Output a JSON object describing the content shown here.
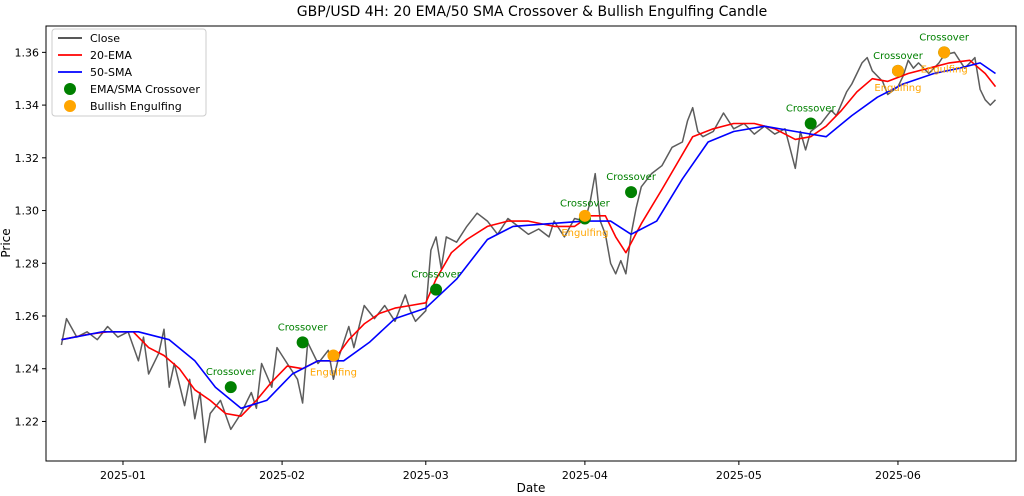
{
  "chart_data": {
    "type": "line",
    "title": "GBP/USD 4H: 20 EMA/50 SMA Crossover & Bullish Engulfing Candle",
    "xlabel": "Date",
    "ylabel": "Price",
    "xlim": [
      "2024-12-17",
      "2025-06-24"
    ],
    "ylim": [
      1.205,
      1.37
    ],
    "x_ticks": [
      "2025-01-01",
      "2025-02-01",
      "2025-03-01",
      "2025-04-01",
      "2025-05-01",
      "2025-06-01"
    ],
    "x_tick_labels": [
      "2025-01",
      "2025-02",
      "2025-03",
      "2025-04",
      "2025-05",
      "2025-06"
    ],
    "y_ticks": [
      1.22,
      1.24,
      1.26,
      1.28,
      1.3,
      1.32,
      1.34,
      1.36
    ],
    "y_tick_labels": [
      "1.22",
      "1.24",
      "1.26",
      "1.28",
      "1.30",
      "1.32",
      "1.34",
      "1.36"
    ],
    "legend_position": "top-left",
    "series": [
      {
        "name": "Close",
        "color": "#404040",
        "points": [
          [
            "2024-12-20",
            1.249
          ],
          [
            "2024-12-21",
            1.259
          ],
          [
            "2024-12-23",
            1.252
          ],
          [
            "2024-12-25",
            1.254
          ],
          [
            "2024-12-27",
            1.251
          ],
          [
            "2024-12-29",
            1.256
          ],
          [
            "2024-12-31",
            1.252
          ],
          [
            "2025-01-02",
            1.254
          ],
          [
            "2025-01-04",
            1.243
          ],
          [
            "2025-01-05",
            1.252
          ],
          [
            "2025-01-06",
            1.238
          ],
          [
            "2025-01-08",
            1.246
          ],
          [
            "2025-01-09",
            1.255
          ],
          [
            "2025-01-10",
            1.233
          ],
          [
            "2025-01-11",
            1.242
          ],
          [
            "2025-01-13",
            1.226
          ],
          [
            "2025-01-14",
            1.236
          ],
          [
            "2025-01-15",
            1.221
          ],
          [
            "2025-01-16",
            1.231
          ],
          [
            "2025-01-17",
            1.212
          ],
          [
            "2025-01-18",
            1.223
          ],
          [
            "2025-01-20",
            1.228
          ],
          [
            "2025-01-22",
            1.217
          ],
          [
            "2025-01-24",
            1.223
          ],
          [
            "2025-01-26",
            1.231
          ],
          [
            "2025-01-27",
            1.225
          ],
          [
            "2025-01-28",
            1.242
          ],
          [
            "2025-01-30",
            1.233
          ],
          [
            "2025-01-31",
            1.248
          ],
          [
            "2025-02-02",
            1.242
          ],
          [
            "2025-02-04",
            1.236
          ],
          [
            "2025-02-05",
            1.227
          ],
          [
            "2025-02-06",
            1.25
          ],
          [
            "2025-02-08",
            1.242
          ],
          [
            "2025-02-10",
            1.247
          ],
          [
            "2025-02-11",
            1.236
          ],
          [
            "2025-02-12",
            1.244
          ],
          [
            "2025-02-14",
            1.256
          ],
          [
            "2025-02-15",
            1.248
          ],
          [
            "2025-02-17",
            1.264
          ],
          [
            "2025-02-19",
            1.259
          ],
          [
            "2025-02-21",
            1.264
          ],
          [
            "2025-02-23",
            1.258
          ],
          [
            "2025-02-25",
            1.268
          ],
          [
            "2025-02-26",
            1.262
          ],
          [
            "2025-02-27",
            1.258
          ],
          [
            "2025-03-01",
            1.262
          ],
          [
            "2025-03-02",
            1.285
          ],
          [
            "2025-03-03",
            1.29
          ],
          [
            "2025-03-04",
            1.278
          ],
          [
            "2025-03-05",
            1.29
          ],
          [
            "2025-03-07",
            1.288
          ],
          [
            "2025-03-09",
            1.294
          ],
          [
            "2025-03-11",
            1.299
          ],
          [
            "2025-03-13",
            1.296
          ],
          [
            "2025-03-15",
            1.291
          ],
          [
            "2025-03-17",
            1.297
          ],
          [
            "2025-03-19",
            1.294
          ],
          [
            "2025-03-21",
            1.291
          ],
          [
            "2025-03-23",
            1.293
          ],
          [
            "2025-03-25",
            1.29
          ],
          [
            "2025-03-26",
            1.296
          ],
          [
            "2025-03-28",
            1.29
          ],
          [
            "2025-03-30",
            1.297
          ],
          [
            "2025-04-01",
            1.296
          ],
          [
            "2025-04-02",
            1.303
          ],
          [
            "2025-04-03",
            1.314
          ],
          [
            "2025-04-04",
            1.296
          ],
          [
            "2025-04-05",
            1.291
          ],
          [
            "2025-04-06",
            1.28
          ],
          [
            "2025-04-07",
            1.276
          ],
          [
            "2025-04-08",
            1.281
          ],
          [
            "2025-04-09",
            1.276
          ],
          [
            "2025-04-10",
            1.291
          ],
          [
            "2025-04-11",
            1.301
          ],
          [
            "2025-04-12",
            1.309
          ],
          [
            "2025-04-14",
            1.314
          ],
          [
            "2025-04-16",
            1.317
          ],
          [
            "2025-04-18",
            1.324
          ],
          [
            "2025-04-20",
            1.326
          ],
          [
            "2025-04-21",
            1.334
          ],
          [
            "2025-04-22",
            1.339
          ],
          [
            "2025-04-23",
            1.33
          ],
          [
            "2025-04-24",
            1.328
          ],
          [
            "2025-04-26",
            1.33
          ],
          [
            "2025-04-28",
            1.337
          ],
          [
            "2025-04-30",
            1.331
          ],
          [
            "2025-05-02",
            1.333
          ],
          [
            "2025-05-04",
            1.329
          ],
          [
            "2025-05-06",
            1.332
          ],
          [
            "2025-05-08",
            1.329
          ],
          [
            "2025-05-10",
            1.331
          ],
          [
            "2025-05-12",
            1.316
          ],
          [
            "2025-05-13",
            1.33
          ],
          [
            "2025-05-14",
            1.323
          ],
          [
            "2025-05-15",
            1.33
          ],
          [
            "2025-05-17",
            1.333
          ],
          [
            "2025-05-19",
            1.338
          ],
          [
            "2025-05-20",
            1.336
          ],
          [
            "2025-05-22",
            1.345
          ],
          [
            "2025-05-23",
            1.348
          ],
          [
            "2025-05-24",
            1.352
          ],
          [
            "2025-05-25",
            1.356
          ],
          [
            "2025-05-26",
            1.358
          ],
          [
            "2025-05-27",
            1.353
          ],
          [
            "2025-05-29",
            1.349
          ],
          [
            "2025-05-30",
            1.344
          ],
          [
            "2025-06-01",
            1.347
          ],
          [
            "2025-06-02",
            1.351
          ],
          [
            "2025-06-03",
            1.357
          ],
          [
            "2025-06-04",
            1.354
          ],
          [
            "2025-06-05",
            1.356
          ],
          [
            "2025-06-07",
            1.352
          ],
          [
            "2025-06-09",
            1.356
          ],
          [
            "2025-06-10",
            1.359
          ],
          [
            "2025-06-12",
            1.36
          ],
          [
            "2025-06-13",
            1.357
          ],
          [
            "2025-06-14",
            1.354
          ],
          [
            "2025-06-16",
            1.358
          ],
          [
            "2025-06-17",
            1.346
          ],
          [
            "2025-06-18",
            1.342
          ],
          [
            "2025-06-19",
            1.34
          ],
          [
            "2025-06-20",
            1.342
          ]
        ]
      },
      {
        "name": "20-EMA",
        "color": "#ff0000",
        "points": [
          [
            "2024-12-20",
            1.251
          ],
          [
            "2024-12-25",
            1.253
          ],
          [
            "2024-12-29",
            1.254
          ],
          [
            "2025-01-03",
            1.254
          ],
          [
            "2025-01-06",
            1.248
          ],
          [
            "2025-01-09",
            1.245
          ],
          [
            "2025-01-12",
            1.24
          ],
          [
            "2025-01-15",
            1.232
          ],
          [
            "2025-01-18",
            1.228
          ],
          [
            "2025-01-21",
            1.223
          ],
          [
            "2025-01-24",
            1.222
          ],
          [
            "2025-01-27",
            1.228
          ],
          [
            "2025-01-30",
            1.235
          ],
          [
            "2025-02-02",
            1.241
          ],
          [
            "2025-02-05",
            1.24
          ],
          [
            "2025-02-08",
            1.243
          ],
          [
            "2025-02-11",
            1.243
          ],
          [
            "2025-02-14",
            1.251
          ],
          [
            "2025-02-17",
            1.257
          ],
          [
            "2025-02-20",
            1.261
          ],
          [
            "2025-02-23",
            1.263
          ],
          [
            "2025-02-26",
            1.264
          ],
          [
            "2025-03-01",
            1.265
          ],
          [
            "2025-03-03",
            1.274
          ],
          [
            "2025-03-06",
            1.284
          ],
          [
            "2025-03-09",
            1.289
          ],
          [
            "2025-03-13",
            1.294
          ],
          [
            "2025-03-17",
            1.296
          ],
          [
            "2025-03-21",
            1.296
          ],
          [
            "2025-03-26",
            1.294
          ],
          [
            "2025-03-30",
            1.294
          ],
          [
            "2025-04-02",
            1.298
          ],
          [
            "2025-04-05",
            1.298
          ],
          [
            "2025-04-07",
            1.29
          ],
          [
            "2025-04-09",
            1.284
          ],
          [
            "2025-04-12",
            1.295
          ],
          [
            "2025-04-16",
            1.308
          ],
          [
            "2025-04-19",
            1.318
          ],
          [
            "2025-04-22",
            1.328
          ],
          [
            "2025-04-26",
            1.331
          ],
          [
            "2025-04-30",
            1.333
          ],
          [
            "2025-05-04",
            1.333
          ],
          [
            "2025-05-08",
            1.331
          ],
          [
            "2025-05-12",
            1.327
          ],
          [
            "2025-05-15",
            1.328
          ],
          [
            "2025-05-18",
            1.332
          ],
          [
            "2025-05-21",
            1.338
          ],
          [
            "2025-05-24",
            1.345
          ],
          [
            "2025-05-27",
            1.35
          ],
          [
            "2025-05-30",
            1.349
          ],
          [
            "2025-06-03",
            1.352
          ],
          [
            "2025-06-07",
            1.354
          ],
          [
            "2025-06-11",
            1.356
          ],
          [
            "2025-06-15",
            1.357
          ],
          [
            "2025-06-18",
            1.352
          ],
          [
            "2025-06-20",
            1.347
          ]
        ]
      },
      {
        "name": "50-SMA",
        "color": "#0000ff",
        "points": [
          [
            "2024-12-20",
            1.251
          ],
          [
            "2024-12-28",
            1.254
          ],
          [
            "2025-01-04",
            1.254
          ],
          [
            "2025-01-10",
            1.251
          ],
          [
            "2025-01-15",
            1.243
          ],
          [
            "2025-01-19",
            1.233
          ],
          [
            "2025-01-24",
            1.225
          ],
          [
            "2025-01-29",
            1.228
          ],
          [
            "2025-02-03",
            1.238
          ],
          [
            "2025-02-08",
            1.243
          ],
          [
            "2025-02-13",
            1.243
          ],
          [
            "2025-02-18",
            1.25
          ],
          [
            "2025-02-23",
            1.259
          ],
          [
            "2025-03-01",
            1.263
          ],
          [
            "2025-03-07",
            1.274
          ],
          [
            "2025-03-13",
            1.289
          ],
          [
            "2025-03-18",
            1.294
          ],
          [
            "2025-03-25",
            1.295
          ],
          [
            "2025-04-01",
            1.296
          ],
          [
            "2025-04-06",
            1.296
          ],
          [
            "2025-04-10",
            1.291
          ],
          [
            "2025-04-15",
            1.296
          ],
          [
            "2025-04-20",
            1.312
          ],
          [
            "2025-04-25",
            1.326
          ],
          [
            "2025-04-30",
            1.33
          ],
          [
            "2025-05-06",
            1.332
          ],
          [
            "2025-05-12",
            1.33
          ],
          [
            "2025-05-18",
            1.328
          ],
          [
            "2025-05-23",
            1.336
          ],
          [
            "2025-05-28",
            1.343
          ],
          [
            "2025-06-02",
            1.348
          ],
          [
            "2025-06-08",
            1.352
          ],
          [
            "2025-06-13",
            1.354
          ],
          [
            "2025-06-17",
            1.356
          ],
          [
            "2025-06-20",
            1.352
          ]
        ]
      }
    ],
    "markers": [
      {
        "name": "EMA/SMA Crossover",
        "color": "#008000",
        "label": "Crossover",
        "label_position": "above",
        "points": [
          [
            "2025-01-22",
            1.233
          ],
          [
            "2025-02-05",
            1.25
          ],
          [
            "2025-03-03",
            1.27
          ],
          [
            "2025-04-01",
            1.297
          ],
          [
            "2025-04-10",
            1.307
          ],
          [
            "2025-05-15",
            1.333
          ],
          [
            "2025-06-01",
            1.353
          ],
          [
            "2025-06-10",
            1.36
          ]
        ]
      },
      {
        "name": "Bullish Engulfing",
        "color": "#ffa500",
        "label": "Engulfing",
        "label_position": "below",
        "points": [
          [
            "2025-02-11",
            1.245
          ],
          [
            "2025-04-01",
            1.298
          ],
          [
            "2025-06-01",
            1.353
          ],
          [
            "2025-06-10",
            1.36
          ]
        ]
      }
    ]
  }
}
